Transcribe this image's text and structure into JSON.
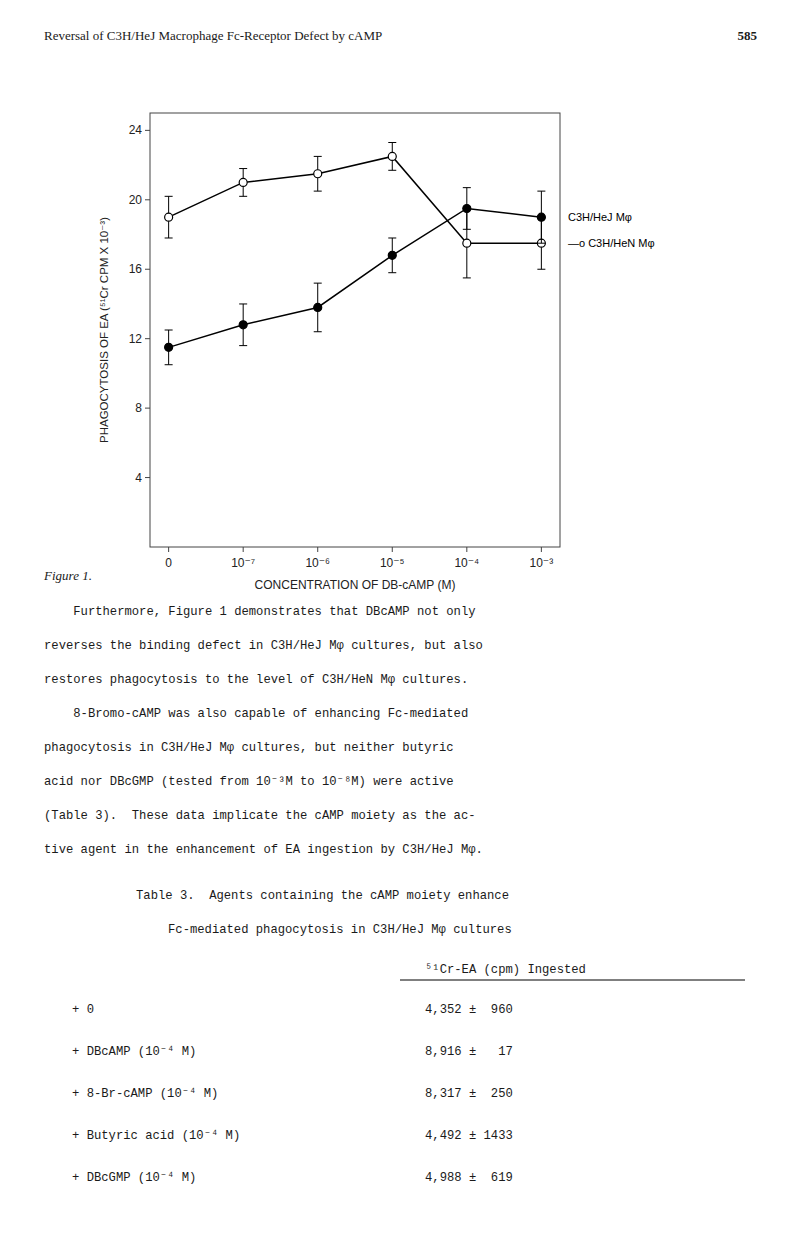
{
  "page_header": "Reversal of C3H/HeJ Macrophage Fc-Receptor Defect by cAMP",
  "page_number": "585",
  "fig_label": "Figure 1.",
  "chart_data": {
    "type": "line",
    "xlabel": "CONCENTRATION OF DB-cAMP (M)",
    "ylabel": "PHAGOCYTOSIS OF EA (⁵¹Cr CPM X 10⁻³)",
    "categories": [
      "0",
      "10⁻⁷",
      "10⁻⁶",
      "10⁻⁵",
      "10⁻⁴",
      "10⁻³"
    ],
    "ylim": [
      0,
      25
    ],
    "yticks": [
      4,
      8,
      12,
      16,
      20,
      24
    ],
    "grid": false,
    "series": [
      {
        "name": "—o C3H/HeN Mφ",
        "color": "#000000",
        "marker": "open_circle",
        "line_style": "solid",
        "values": [
          19.0,
          21.0,
          21.5,
          22.5,
          17.5,
          17.5
        ],
        "errors": [
          1.2,
          0.8,
          1.0,
          0.8,
          2.0,
          1.5
        ]
      },
      {
        "name": "C3H/HeJ Mφ",
        "color": "#000000",
        "marker": "circle",
        "line_style": "solid",
        "values": [
          11.5,
          12.8,
          13.8,
          16.8,
          19.5,
          19.0
        ],
        "errors": [
          1.0,
          1.2,
          1.4,
          1.0,
          1.2,
          1.5
        ]
      }
    ]
  },
  "body_text": [
    "    Furthermore, Figure 1 demonstrates that DBcAMP not only",
    "reverses the binding defect in C3H/HeJ Mφ cultures, but also",
    "restores phagocytosis to the level of C3H/HeN Mφ cultures.",
    "    8-Bromo-cAMP was also capable of enhancing Fc-mediated",
    "phagocytosis in C3H/HeJ Mφ cultures, but neither butyric",
    "acid nor DBcGMP (tested from 10⁻³M to 10⁻⁸M) were active",
    "(Table 3).  These data implicate the cAMP moiety as the ac-",
    "tive agent in the enhancement of EA ingestion by C3H/HeJ Mφ."
  ],
  "table": {
    "title": "Table 3.  Agents containing the cAMP moiety enhance",
    "subtitle": "Fc-mediated phagocytosis in C3H/HeJ Mφ cultures",
    "header": "⁵¹Cr-EA (cpm) Ingested",
    "rows": [
      [
        "+ 0",
        "4,352 ±  960"
      ],
      [
        "+ DBcAMP (10⁻⁴ M)",
        "8,916 ±   17"
      ],
      [
        "+ 8-Br-cAMP (10⁻⁴ M)",
        "8,317 ±  250"
      ],
      [
        "+ Butyric acid (10⁻⁴ M)",
        "4,492 ± 1433"
      ],
      [
        "+ DBcGMP (10⁻⁴ M)",
        "4,988 ±  619"
      ]
    ]
  }
}
